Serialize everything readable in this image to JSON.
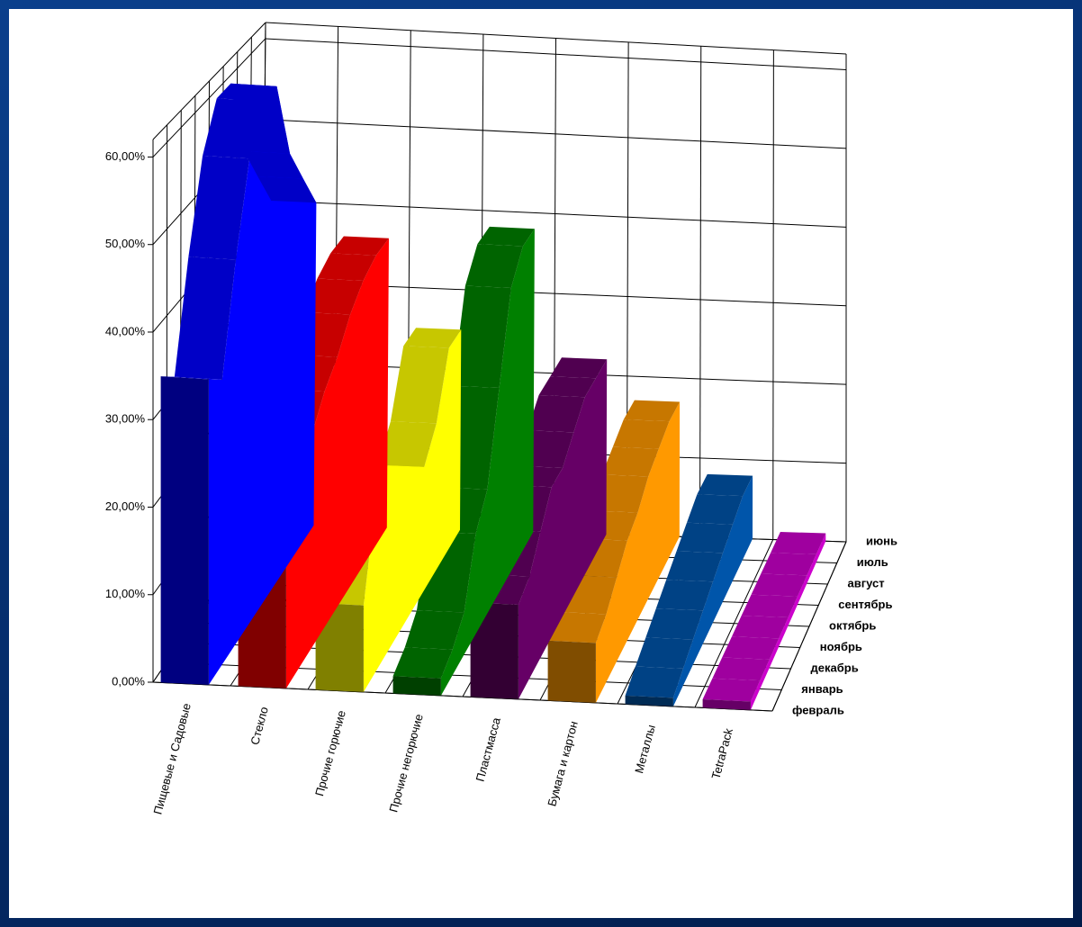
{
  "chart_data": {
    "type": "area3d",
    "categories": [
      "июнь",
      "июль",
      "август",
      "сентябрь",
      "октябрь",
      "ноябрь",
      "декабрь",
      "январь",
      "февраль"
    ],
    "series": [
      {
        "name": "Пищевые и Садовые",
        "color": "#0000ff",
        "values": [
          40,
          45,
          50,
          60,
          60,
          55,
          45,
          33,
          35
        ]
      },
      {
        "name": "Стекло",
        "color": "#ff0000",
        "values": [
          36,
          36,
          35,
          33,
          30,
          28,
          25,
          22,
          23
        ]
      },
      {
        "name": "Прочие горючие",
        "color": "#ffff00",
        "values": [
          25,
          25,
          18,
          15,
          18,
          22,
          22,
          20,
          10
        ]
      },
      {
        "name": "Прочие негорючие",
        "color": "#008000",
        "values": [
          38,
          38,
          35,
          25,
          15,
          12,
          5,
          3,
          2
        ]
      },
      {
        "name": "Пластмасса",
        "color": "#660066",
        "values": [
          22,
          22,
          22,
          20,
          18,
          18,
          15,
          12,
          11
        ]
      },
      {
        "name": "Бумага и картон",
        "color": "#ff9900",
        "values": [
          17,
          17,
          16,
          15,
          13,
          12,
          10,
          8,
          7
        ]
      },
      {
        "name": "Металлы",
        "color": "#0055aa",
        "values": [
          8,
          8,
          7,
          6,
          5,
          4,
          3,
          2,
          1
        ]
      },
      {
        "name": "TetraPack",
        "color": "#cc00cc",
        "values": [
          1,
          1,
          1,
          1,
          1,
          1,
          1,
          1,
          1
        ]
      }
    ],
    "ylim": [
      0,
      62
    ],
    "yticks": [
      {
        "value": 0,
        "label": "0,00%"
      },
      {
        "value": 10,
        "label": "10,00%"
      },
      {
        "value": 20,
        "label": "20,00%"
      },
      {
        "value": 30,
        "label": "30,00%"
      },
      {
        "value": 40,
        "label": "40,00%"
      },
      {
        "value": 50,
        "label": "50,00%"
      },
      {
        "value": 60,
        "label": "60,00%"
      }
    ],
    "grid": true
  }
}
